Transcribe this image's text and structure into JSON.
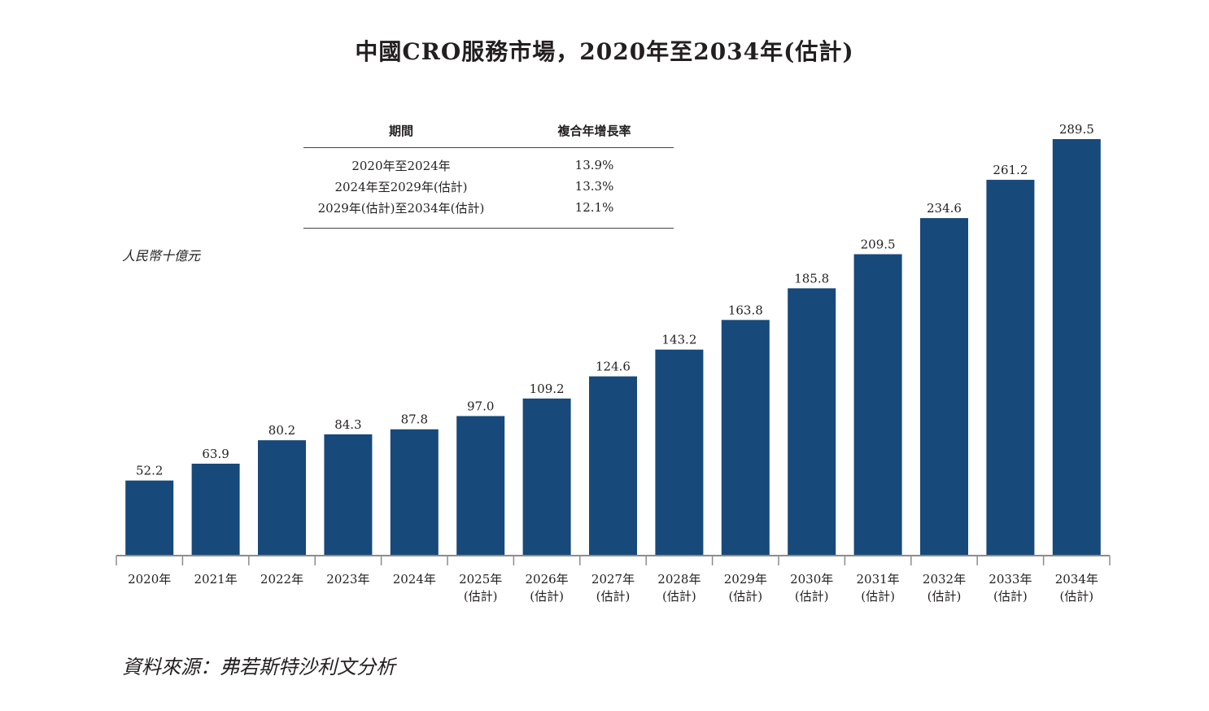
{
  "title": "中國CRO服務市場，2020年至2034年(估計)",
  "cagr_table": {
    "headers": [
      "期間",
      "複合年增長率"
    ],
    "rows": [
      {
        "period": "2020年至2024年",
        "rate": "13.9%"
      },
      {
        "period": "2024年至2029年(估計)",
        "rate": "13.3%"
      },
      {
        "period": "2029年(估計)至2034年(估計)",
        "rate": "12.1%"
      }
    ]
  },
  "source": "資料來源：弗若斯特沙利文分析",
  "chart_data": {
    "type": "bar",
    "title": "中國CRO服務市場，2020年至2034年(估計)",
    "ylabel": "人民幣十億元",
    "xlabel": "",
    "categories": [
      [
        "2020年"
      ],
      [
        "2021年"
      ],
      [
        "2022年"
      ],
      [
        "2023年"
      ],
      [
        "2024年"
      ],
      [
        "2025年",
        "(估計)"
      ],
      [
        "2026年",
        "(估計)"
      ],
      [
        "2027年",
        "(估計)"
      ],
      [
        "2028年",
        "(估計)"
      ],
      [
        "2029年",
        "(估計)"
      ],
      [
        "2030年",
        "(估計)"
      ],
      [
        "2031年",
        "(估計)"
      ],
      [
        "2032年",
        "(估計)"
      ],
      [
        "2033年",
        "(估計)"
      ],
      [
        "2034年",
        "(估計)"
      ]
    ],
    "values": [
      52.2,
      63.9,
      80.2,
      84.3,
      87.8,
      97.0,
      109.2,
      124.6,
      143.2,
      163.8,
      185.8,
      209.5,
      234.6,
      261.2,
      289.5
    ],
    "value_labels": [
      "52.2",
      "63.9",
      "80.2",
      "84.3",
      "87.8",
      "97.0",
      "109.2",
      "124.6",
      "143.2",
      "163.8",
      "185.8",
      "209.5",
      "234.6",
      "261.2",
      "289.5"
    ],
    "ylim": [
      0,
      289.5
    ],
    "grid": false,
    "bar_color": "#17497a",
    "axis_color": "#8c8c8c"
  }
}
